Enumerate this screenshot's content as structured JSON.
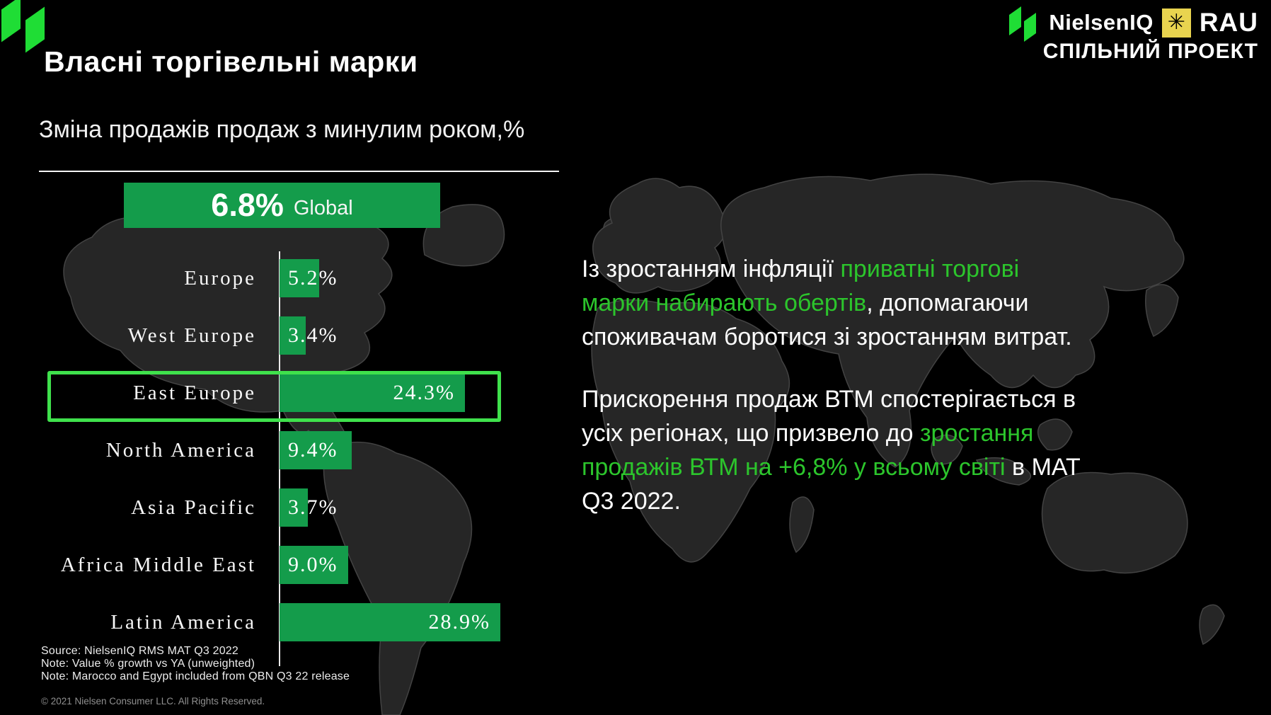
{
  "slide": {
    "title": "Власні торгівельні марки",
    "header": {
      "nielseniq_label": "NielsenIQ",
      "rau_label": "RAU",
      "rau_star_glyph": "✳",
      "joint_project_label": "СПІЛЬНИЙ ПРОЕКТ"
    },
    "colors": {
      "background": "#000000",
      "bar_green": "#149c4b",
      "brand_mark_green": "#1fdd35",
      "highlight_border_green": "#3fe14c",
      "text_green": "#2cc52c",
      "rau_yellow": "#e9d44f",
      "map_gray": "#262626"
    },
    "insights": {
      "p1_lines": [
        [
          {
            "t": "Із зростанням інфляції ",
            "g": false
          },
          {
            "t": "приватні торгові",
            "g": true
          }
        ],
        [
          {
            "t": "марки набирають обертів",
            "g": true
          },
          {
            "t": ", допомагаючи",
            "g": false
          }
        ],
        [
          {
            "t": "споживачам боротися зі зростанням витрат.",
            "g": false
          }
        ]
      ],
      "p2_lines": [
        [
          {
            "t": "Прискорення продаж ВТМ спостерігається в",
            "g": false
          }
        ],
        [
          {
            "t": "усіх регіонах, що призвело до ",
            "g": false
          },
          {
            "t": "зростання",
            "g": true
          }
        ],
        [
          {
            "t": "продажів ВТМ на +6,8% у всьому світі",
            "g": true
          },
          {
            "t": " в MAT",
            "g": false
          }
        ],
        [
          {
            "t": "Q3 2022.",
            "g": false
          }
        ]
      ]
    },
    "footer": {
      "source": "Source: NielsenIQ RMS MAT Q3 2022",
      "note1": "Note: Value % growth vs YA (unweighted)",
      "note2": "Note: Marocco and Egypt included from QBN Q3 22 release",
      "copyright": "© 2021 Nielsen Consumer LLC. All Rights Reserved."
    }
  },
  "chart_data": {
    "type": "bar",
    "orientation": "horizontal",
    "title": "Зміна продажів продаж з минулим роком,%",
    "global": {
      "value": "6.8%",
      "label": "Global"
    },
    "categories": [
      "Europe",
      "West Europe",
      "East Europe",
      "North America",
      "Asia Pacific",
      "Africa Middle East",
      "Latin America"
    ],
    "values": [
      5.2,
      3.4,
      24.3,
      9.4,
      3.7,
      9.0,
      28.9
    ],
    "value_labels": [
      "5.2%",
      "3.4%",
      "24.3%",
      "9.4%",
      "3.7%",
      "9.0%",
      "28.9%"
    ],
    "highlighted_category": "East Europe",
    "xlim": [
      0,
      30
    ],
    "grid": false,
    "legend": false
  }
}
